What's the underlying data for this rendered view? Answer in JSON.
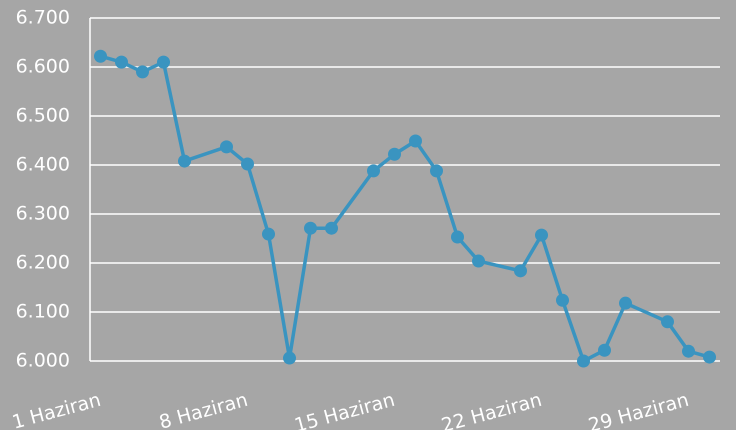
{
  "chart_data": {
    "type": "line",
    "x": [
      1,
      2,
      3,
      4,
      5,
      7,
      8,
      9,
      10,
      11,
      12,
      14,
      15,
      16,
      17,
      18,
      19,
      21,
      22,
      23,
      24,
      25,
      26,
      28,
      29,
      30
    ],
    "series": [
      {
        "color": "#3a94c0",
        "values": [
          6.622,
          6.61,
          6.59,
          6.61,
          6.408,
          6.437,
          6.402,
          6.259,
          6.006,
          6.271,
          6.271,
          6.388,
          6.422,
          6.449,
          6.388,
          6.253,
          6.204,
          6.184,
          6.257,
          6.124,
          6.0,
          6.022,
          6.118,
          6.08,
          6.02,
          6.008
        ]
      }
    ],
    "xlim": [
      0.5,
      30.5
    ],
    "xticks": [
      {
        "value": 1,
        "label": "1 Haziran"
      },
      {
        "value": 8,
        "label": "8 Haziran"
      },
      {
        "value": 15,
        "label": "15 Haziran"
      },
      {
        "value": 22,
        "label": "22 Haziran"
      },
      {
        "value": 29,
        "label": "29 Haziran"
      }
    ],
    "ylim": [
      6.0,
      6.7
    ],
    "yticks": [
      {
        "value": 6.0,
        "label": "6.000"
      },
      {
        "value": 6.1,
        "label": "6.100"
      },
      {
        "value": 6.2,
        "label": "6.200"
      },
      {
        "value": 6.3,
        "label": "6.300"
      },
      {
        "value": 6.4,
        "label": "6.400"
      },
      {
        "value": 6.5,
        "label": "6.500"
      },
      {
        "value": 6.6,
        "label": "6.600"
      },
      {
        "value": 6.7,
        "label": "6.700"
      }
    ],
    "grid": true
  }
}
